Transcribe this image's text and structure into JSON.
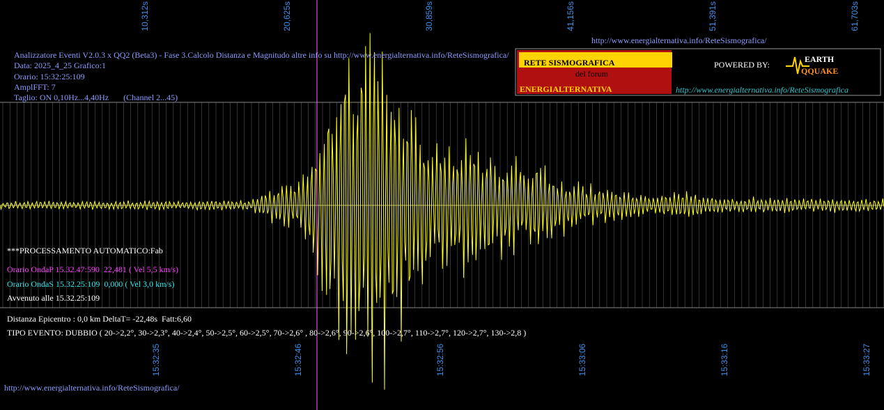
{
  "header": {
    "url_top": "http://www.energialternativa.info/ReteSismografica/",
    "info_lines": [
      "Analizzatore Eventi V2.0.3 x QQ2 (Beta3) - Fase 3.Calcolo Distanza e Magnitudo altre info su http://www.energialternativa.info/ReteSismografica/",
      "Data: 2025_4_25 Grafico:1",
      "Orario: 15:32:25:109",
      "AmplFFT: 7",
      "Taglio: ON 0,10Hz...4,40Hz       (Channel 2...45)"
    ]
  },
  "logo": {
    "line1": "RETE SISMOGRAFICA",
    "line2": "del forum",
    "line3": "ENERGIALTERNATIVA",
    "powered": "POWERED BY:",
    "brand1": "EARTH",
    "brand2": "QQUAKE",
    "url": "http://www.energialternativa.info/ReteSismografica"
  },
  "top_time_labels": [
    "10,312s",
    "20,625s",
    "30,859s",
    "41,156s",
    "51,391s",
    "61,703s"
  ],
  "bottom_time_labels": [
    "15:32:35",
    "15:32:46",
    "15:32:56",
    "15:33:06",
    "15:33:16",
    "15:33:27"
  ],
  "processing": {
    "title": "***PROCESSAMENTO AUTOMATICO:Fab",
    "wave_p": "Orario OndaP 15.32.47:590  22,481 ( Vel 5,5 km/s)",
    "wave_s": "Orario OndaS 15.32.25:109  0,000 ( Vel 3,0 km/s)",
    "warned": "Avvenuto alle 15.32.25:109",
    "distance": "Distanza Epicentro : 0,0 km DeltaT= -22,48s  Fatt:6,60",
    "event_type": "TIPO EVENTO: DUBBIO ( 20->2,2°, 30->2,3°, 40->2,4°, 50->2,5°, 60->2,5°, 70->2,6° , 80->2,6°, 90->2,6°, 100->2,7°, 110->2,7°, 120->2,7°, 130->2,8 )"
  },
  "footer_url": "http://www.energialternativa.info/ReteSismografica/"
}
